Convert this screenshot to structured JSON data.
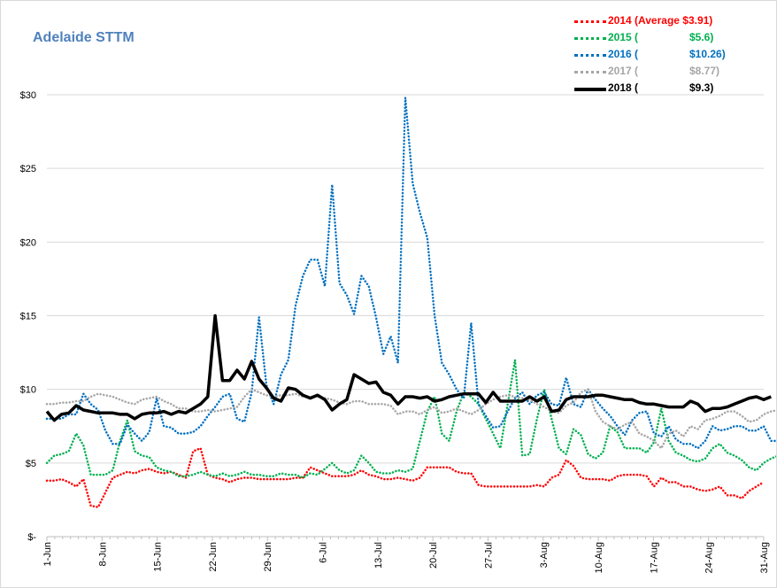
{
  "chart_title": "Adelaide STTM",
  "legend": [
    {
      "year_label": "2014 (Average $3.91)",
      "avg_label": "",
      "color": "#ff0000",
      "style": "dotted"
    },
    {
      "year_label": "2015 (",
      "avg_label": "$5.6)",
      "color": "#00b050",
      "style": "dotted"
    },
    {
      "year_label": "2016 (",
      "avg_label": "$10.26)",
      "color": "#0070c0",
      "style": "dotted"
    },
    {
      "year_label": "2017 (",
      "avg_label": "$8.77)",
      "color": "#a6a6a6",
      "style": "dotted"
    },
    {
      "year_label": "2018 (",
      "avg_label": "$9.3)",
      "color": "#000000",
      "style": "solid"
    }
  ],
  "chart_data": {
    "type": "line",
    "title": "Adelaide STTM",
    "x_range": [
      "1-Jun",
      "31-Aug"
    ],
    "x_tick_labels": [
      "1-Jun",
      "8-Jun",
      "15-Jun",
      "22-Jun",
      "29-Jun",
      "6-Jul",
      "13-Jul",
      "20-Jul",
      "27-Jul",
      "3-Aug",
      "10-Aug",
      "17-Aug",
      "24-Aug",
      "31-Aug"
    ],
    "y_tick_labels": [
      "$-",
      "$5",
      "$10",
      "$15",
      "$20",
      "$25",
      "$30"
    ],
    "ylim": [
      0,
      30
    ],
    "grid": "horizontal",
    "legend_position": "top-right",
    "series": [
      {
        "name": "2014 (Average $3.91)",
        "color": "#ff0000",
        "style": "dotted",
        "values": [
          3.8,
          3.8,
          3.9,
          3.7,
          3.4,
          3.9,
          2.1,
          2.0,
          3.0,
          4.0,
          4.2,
          4.4,
          4.3,
          4.5,
          4.6,
          4.4,
          4.3,
          4.4,
          4.2,
          4.0,
          5.8,
          6.0,
          4.2,
          4.0,
          3.9,
          3.7,
          3.9,
          4.0,
          4.0,
          3.9,
          3.9,
          3.9,
          3.9,
          3.9,
          4.0,
          4.0,
          4.7,
          4.5,
          4.3,
          4.1,
          4.1,
          4.1,
          4.2,
          4.5,
          4.2,
          4.1,
          3.9,
          3.9,
          4.0,
          3.9,
          3.8,
          4.0,
          4.7,
          4.7,
          4.7,
          4.7,
          4.4,
          4.3,
          4.3,
          3.5,
          3.4,
          3.4,
          3.4,
          3.4,
          3.4,
          3.4,
          3.4,
          3.5,
          3.4,
          4.0,
          4.2,
          5.2,
          4.8,
          4.0,
          3.9,
          3.9,
          3.9,
          3.8,
          4.1,
          4.2,
          4.2,
          4.2,
          4.1,
          3.4,
          4.0,
          3.7,
          3.7,
          3.4,
          3.4,
          3.2,
          3.1,
          3.2,
          3.4,
          2.8,
          2.8,
          2.6,
          3.1,
          3.4,
          3.7
        ]
      },
      {
        "name": "2015 ($5.6)",
        "color": "#00b050",
        "style": "dotted",
        "values": [
          5.0,
          5.5,
          5.6,
          5.8,
          7.0,
          6.2,
          4.2,
          4.2,
          4.2,
          4.5,
          6.5,
          7.9,
          5.8,
          5.5,
          5.4,
          4.7,
          4.5,
          4.4,
          4.1,
          4.1,
          4.2,
          4.4,
          4.2,
          4.1,
          4.3,
          4.1,
          4.2,
          4.4,
          4.2,
          4.2,
          4.1,
          4.1,
          4.3,
          4.2,
          4.2,
          4.0,
          4.3,
          4.2,
          4.6,
          5.0,
          4.5,
          4.3,
          4.5,
          5.5,
          5.0,
          4.4,
          4.3,
          4.3,
          4.5,
          4.4,
          4.6,
          6.5,
          8.5,
          9.5,
          7.0,
          6.5,
          8.5,
          9.8,
          9.5,
          9.0,
          8.0,
          7.0,
          6.0,
          9.0,
          12.0,
          5.5,
          5.6,
          8.0,
          10.0,
          8.0,
          6.0,
          5.6,
          7.3,
          6.9,
          5.6,
          5.3,
          5.7,
          7.5,
          7.1,
          6.0,
          6.0,
          6.0,
          5.7,
          6.4,
          8.7,
          6.5,
          5.7,
          5.5,
          5.2,
          5.1,
          5.3,
          6.0,
          6.3,
          5.7,
          5.5,
          5.2,
          4.7,
          4.5,
          5.0,
          5.3,
          5.5,
          5.3,
          5.3,
          5.2
        ]
      },
      {
        "name": "2016 ($10.26)",
        "color": "#0070c0",
        "style": "dotted",
        "values": [
          8.0,
          8.0,
          8.0,
          8.3,
          8.3,
          9.7,
          9.0,
          8.6,
          7.2,
          6.3,
          6.3,
          7.6,
          7.0,
          6.5,
          7.1,
          9.4,
          7.5,
          7.4,
          7.0,
          7.0,
          7.1,
          7.5,
          8.2,
          8.8,
          9.5,
          9.7,
          8.0,
          7.8,
          9.8,
          14.9,
          10.3,
          9.0,
          11.0,
          12.0,
          15.7,
          17.7,
          18.8,
          18.8,
          17.0,
          23.9,
          17.2,
          16.4,
          15.1,
          17.7,
          17.0,
          14.9,
          12.4,
          13.6,
          11.8,
          29.8,
          24.0,
          22.0,
          20.3,
          15.0,
          11.8,
          11.0,
          10.0,
          9.4,
          14.5,
          9.0,
          8.2,
          7.4,
          7.5,
          8.5,
          9.4,
          9.8,
          9.0,
          9.6,
          9.8,
          9.0,
          8.9,
          10.8,
          9.0,
          8.8,
          10.0,
          9.3,
          8.7,
          8.2,
          7.5,
          6.9,
          7.9,
          8.4,
          8.5,
          7.0,
          6.8,
          7.5,
          6.6,
          6.3,
          6.3,
          6.0,
          6.5,
          7.5,
          7.2,
          7.3,
          7.5,
          7.5,
          7.2,
          7.2,
          7.5,
          6.5,
          6.5,
          6.6,
          6.5
        ]
      },
      {
        "name": "2017 ($8.77)",
        "color": "#a6a6a6",
        "style": "dotted",
        "values": [
          9.0,
          9.0,
          9.1,
          9.1,
          9.2,
          9.2,
          9.5,
          9.7,
          9.6,
          9.5,
          9.3,
          9.1,
          9.0,
          9.3,
          9.4,
          9.5,
          9.2,
          9.0,
          8.7,
          8.7,
          8.5,
          8.5,
          8.6,
          8.5,
          8.6,
          8.7,
          8.8,
          9.5,
          10.0,
          9.8,
          9.6,
          9.5,
          9.6,
          9.6,
          9.7,
          9.5,
          9.5,
          9.5,
          9.4,
          9.3,
          9.1,
          9.0,
          9.2,
          9.2,
          9.0,
          9.0,
          9.0,
          8.9,
          8.3,
          8.5,
          8.5,
          8.3,
          8.6,
          8.8,
          8.4,
          8.5,
          8.7,
          8.5,
          8.3,
          8.6,
          9.0,
          9.3,
          9.5,
          9.6,
          9.5,
          9.4,
          9.3,
          9.0,
          8.8,
          8.5,
          8.4,
          8.9,
          9.1,
          9.8,
          10.0,
          8.5,
          7.8,
          7.5,
          7.3,
          7.6,
          7.8,
          7.0,
          6.8,
          6.5,
          6.0,
          7.0,
          7.2,
          6.8,
          7.5,
          7.3,
          7.9,
          8.0,
          8.2,
          8.5,
          8.5,
          8.2,
          7.8,
          7.9,
          8.3,
          8.5,
          8.6,
          9.0,
          9.1,
          9.0
        ]
      },
      {
        "name": "2018 ($9.3)",
        "color": "#000000",
        "style": "solid",
        "values": [
          8.5,
          7.9,
          8.3,
          8.4,
          8.9,
          8.6,
          8.5,
          8.4,
          8.4,
          8.4,
          8.3,
          8.3,
          8.0,
          8.3,
          8.4,
          8.4,
          8.5,
          8.3,
          8.5,
          8.4,
          8.7,
          9.0,
          9.5,
          15.0,
          10.6,
          10.6,
          11.3,
          10.7,
          11.9,
          10.7,
          10.1,
          9.4,
          9.2,
          10.1,
          10.0,
          9.6,
          9.4,
          9.6,
          9.3,
          8.6,
          9.0,
          9.3,
          11.0,
          10.7,
          10.4,
          10.5,
          9.8,
          9.6,
          9.0,
          9.5,
          9.5,
          9.4,
          9.5,
          9.2,
          9.3,
          9.5,
          9.6,
          9.7,
          9.7,
          9.7,
          9.1,
          9.8,
          9.2,
          9.2,
          9.2,
          9.2,
          9.5,
          9.2,
          9.5,
          8.5,
          8.6,
          9.3,
          9.5,
          9.5,
          9.5,
          9.6,
          9.6,
          9.5,
          9.4,
          9.3,
          9.3,
          9.1,
          9.0,
          9.0,
          8.9,
          8.8,
          8.8,
          8.8,
          9.2,
          9.0,
          8.5,
          8.7,
          8.7,
          8.8,
          9.0,
          9.2,
          9.4,
          9.5,
          9.3,
          9.5
        ]
      }
    ]
  }
}
